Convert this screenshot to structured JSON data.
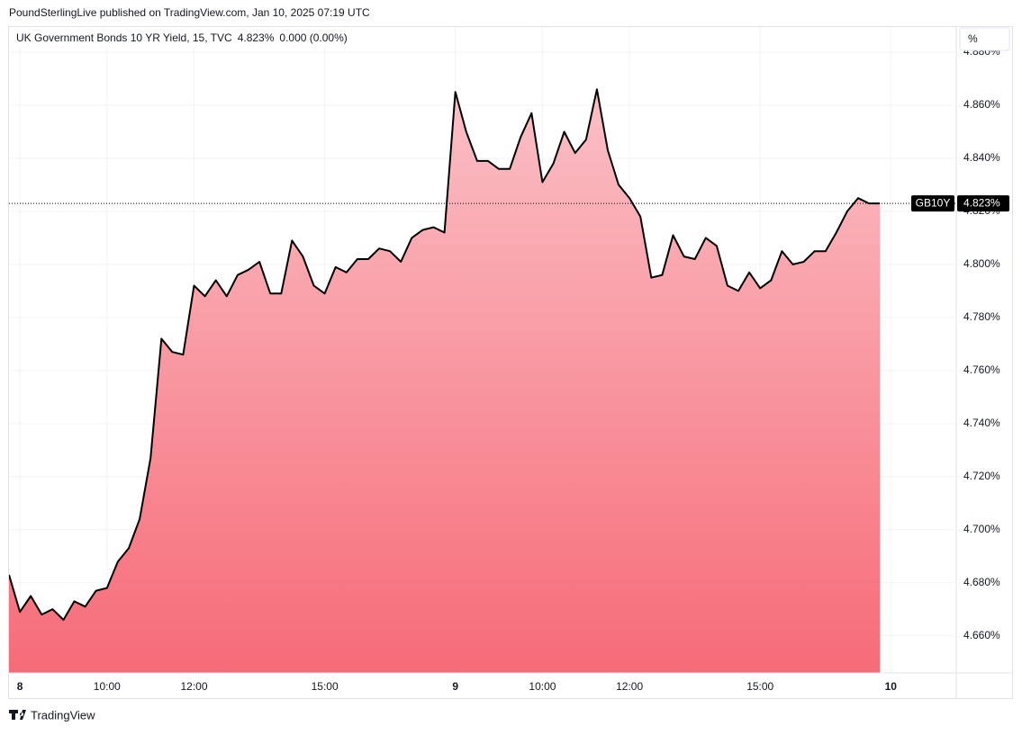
{
  "header": {
    "publisher": "PoundSterlingLive published on TradingView.com, Jan 10, 2025 07:19 UTC",
    "brand": "TradingView"
  },
  "chart_data": {
    "type": "area",
    "legend": {
      "symbol": "UK Government Bonds 10 YR Yield, 15, TVC",
      "change": "0.000 (0.00%)"
    },
    "scale_button": "%",
    "ticker": "GB10Y",
    "last_value": {
      "value": 4.823,
      "label": "4.823%"
    },
    "categories": [
      null,
      "8",
      null,
      null,
      null,
      null,
      null,
      null,
      null,
      "10:00",
      null,
      null,
      null,
      null,
      null,
      null,
      null,
      "12:00",
      null,
      null,
      null,
      null,
      null,
      null,
      null,
      null,
      null,
      null,
      null,
      "15:00",
      null,
      null,
      null,
      null,
      null,
      null,
      null,
      null,
      null,
      null,
      null,
      "9",
      null,
      null,
      null,
      null,
      null,
      null,
      null,
      "10:00",
      null,
      null,
      null,
      null,
      null,
      null,
      null,
      "12:00",
      null,
      null,
      null,
      null,
      null,
      null,
      null,
      null,
      null,
      null,
      null,
      "15:00",
      null,
      null,
      null,
      null,
      null,
      null,
      null,
      null,
      null,
      null,
      null,
      "10"
    ],
    "series": [
      {
        "name": "GB10Y",
        "color": "#000000",
        "fill_top": "#fbc0c6",
        "fill_bottom": "#f66b78",
        "values": [
          4.683,
          4.669,
          4.675,
          4.668,
          4.67,
          4.666,
          4.673,
          4.671,
          4.677,
          4.678,
          4.688,
          4.693,
          4.704,
          4.727,
          4.772,
          4.767,
          4.766,
          4.792,
          4.788,
          4.794,
          4.788,
          4.796,
          4.798,
          4.801,
          4.789,
          4.789,
          4.809,
          4.803,
          4.792,
          4.789,
          4.799,
          4.797,
          4.802,
          4.802,
          4.806,
          4.805,
          4.801,
          4.81,
          4.813,
          4.814,
          4.812,
          4.865,
          4.85,
          4.839,
          4.839,
          4.836,
          4.836,
          4.848,
          4.857,
          4.831,
          4.838,
          4.85,
          4.842,
          4.847,
          4.866,
          4.843,
          4.83,
          4.825,
          4.818,
          4.795,
          4.796,
          4.811,
          4.803,
          4.802,
          4.81,
          4.807,
          4.792,
          4.79,
          4.797,
          4.791,
          4.794,
          4.805,
          4.8,
          4.801,
          4.805,
          4.805,
          4.812,
          4.82,
          4.825,
          4.823,
          4.823,
          null
        ]
      }
    ],
    "ylim": [
      4.646,
      4.8895
    ],
    "yticks": [
      {
        "value": 4.66,
        "label": "4.660%"
      },
      {
        "value": 4.68,
        "label": "4.680%"
      },
      {
        "value": 4.7,
        "label": "4.700%"
      },
      {
        "value": 4.72,
        "label": "4.720%"
      },
      {
        "value": 4.74,
        "label": "4.740%"
      },
      {
        "value": 4.76,
        "label": "4.760%"
      },
      {
        "value": 4.78,
        "label": "4.780%"
      },
      {
        "value": 4.8,
        "label": "4.800%"
      },
      {
        "value": 4.82,
        "label": "4.820%"
      },
      {
        "value": 4.84,
        "label": "4.840%"
      },
      {
        "value": 4.86,
        "label": "4.860%"
      },
      {
        "value": 4.88,
        "label": "4.880%"
      }
    ],
    "grid": true
  }
}
